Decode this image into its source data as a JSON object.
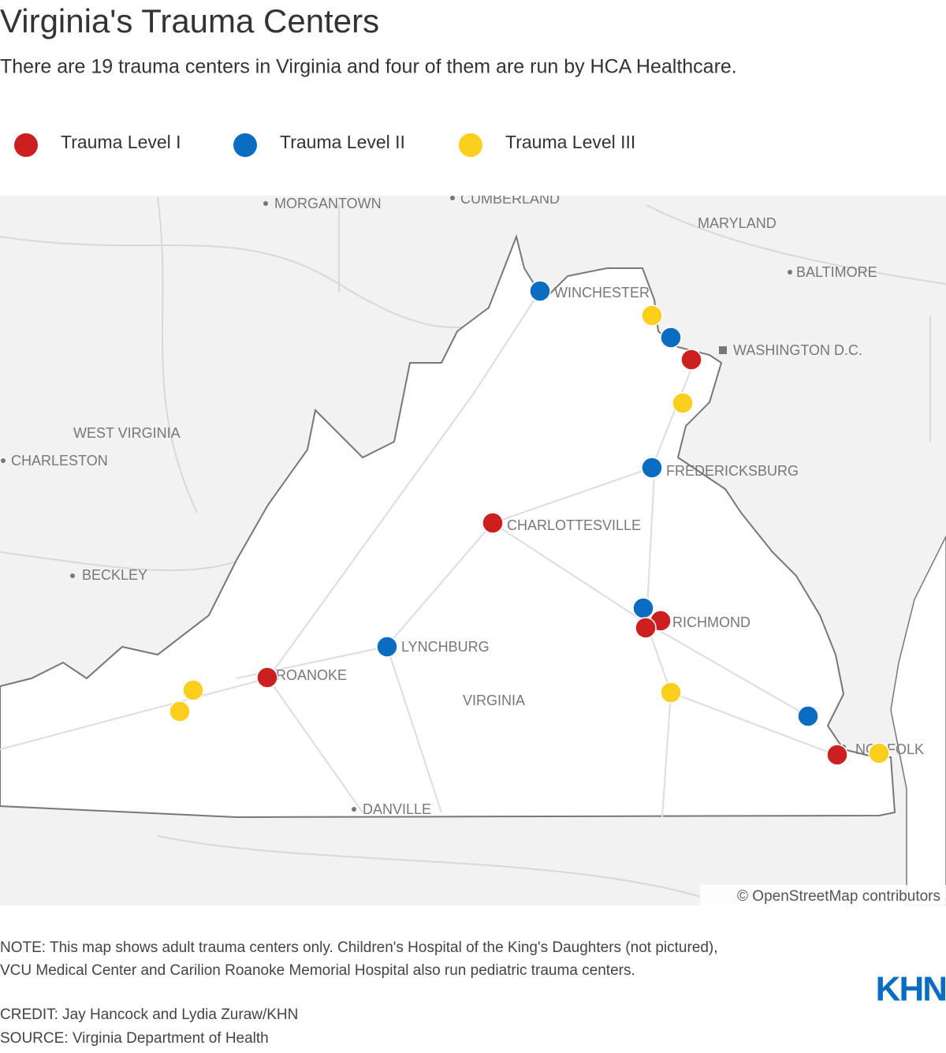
{
  "header": {
    "title": "Virginia's Trauma Centers",
    "subtitle": "There are 19 trauma centers in Virginia and four of them are run by HCA Healthcare."
  },
  "legend": [
    "Trauma Level I",
    "Trauma Level II",
    "Trauma Level III"
  ],
  "map": {
    "labels": [
      "MORGANTOWN",
      "CUMBERLAND",
      "MARYLAND",
      "BALTIMORE",
      "WINCHESTER",
      "WASHINGTON D.C.",
      "WEST VIRGINIA",
      "CHARLESTON",
      "FREDERICKSBURG",
      "CHARLOTTESVILLE",
      "BECKLEY",
      "RICHMOND",
      "LYNCHBURG",
      "ROANOKE",
      "VIRGINIA",
      "NORFOLK",
      "DANVILLE"
    ],
    "attribution": "© OpenStreetMap contributors"
  },
  "footer": {
    "note": [
      "NOTE: This map shows adult trauma centers only. Children's Hospital of the King's Daughters (not pictured),",
      "VCU Medical Center and Carilion Roanoke Memorial Hospital also run pediatric trauma centers."
    ],
    "credit": "CREDIT: Jay Hancock and Lydia Zuraw/KHN",
    "source": "SOURCE: Virginia Department of Health",
    "logo": "KHN"
  }
}
